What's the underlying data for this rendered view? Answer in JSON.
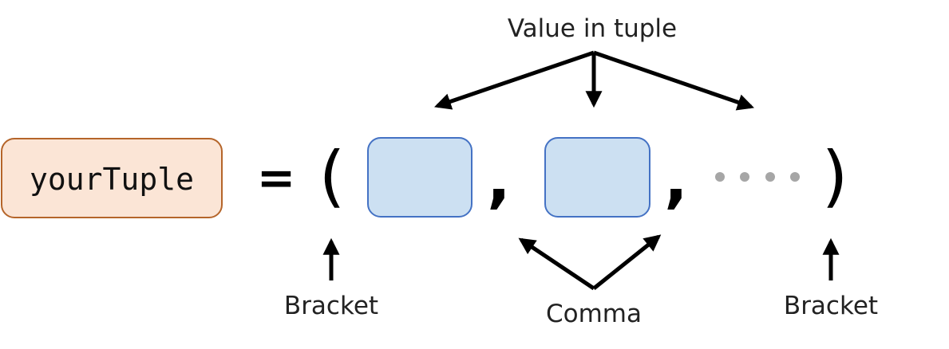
{
  "variable": {
    "name": "yourTuple",
    "fill_color": "#fbe5d6",
    "border_color": "#b5652a"
  },
  "symbols": {
    "equals": "=",
    "open_bracket": "(",
    "close_bracket": ")",
    "comma": ","
  },
  "value_box": {
    "fill_color": "#cce0f2",
    "border_color": "#4472c4",
    "count": 2
  },
  "ellipsis": {
    "dot_count": 4,
    "color": "#a6a6a6"
  },
  "annotations": {
    "value_label": "Value in tuple",
    "open_bracket_label": "Bracket",
    "close_bracket_label": "Bracket",
    "comma_label": "Comma"
  }
}
